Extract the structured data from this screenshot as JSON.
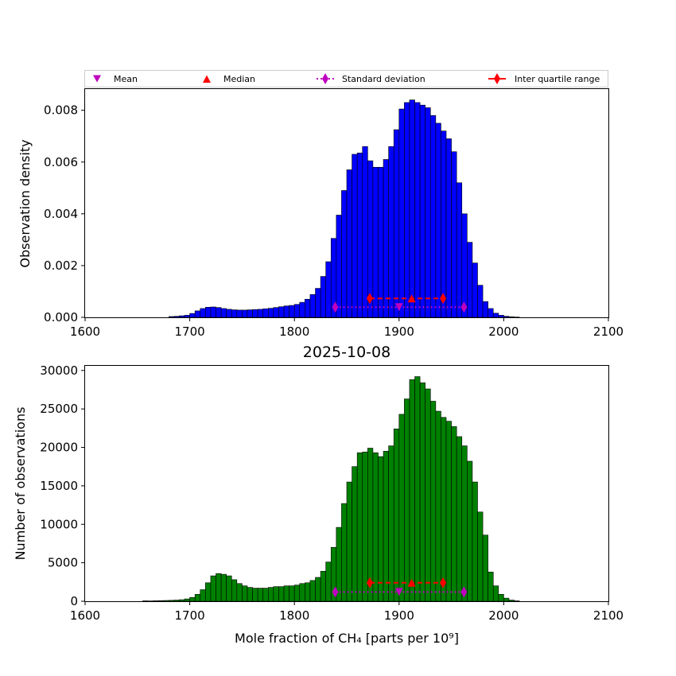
{
  "legend": {
    "items": [
      {
        "label": "Mean",
        "marker": "triangle-down",
        "color": "#bf00bf"
      },
      {
        "label": "Median",
        "marker": "triangle-up",
        "color": "#ff0000"
      },
      {
        "label": "Standard deviation",
        "marker": "diamond-dotted-line",
        "color": "#bf00bf"
      },
      {
        "label": "Inter quartile range",
        "marker": "diamond-solid-line",
        "color": "#ff0000"
      }
    ]
  },
  "bottom_title": "2025-10-08",
  "chart_data": [
    {
      "type": "bar",
      "title": "",
      "xlabel": "",
      "ylabel": "Observation density",
      "xlim": [
        1600,
        2100
      ],
      "ylim": [
        0,
        0.00882
      ],
      "xticks": [
        1600,
        1700,
        1800,
        1900,
        2000,
        2100
      ],
      "xtick_labels": [
        "1600",
        "1700",
        "1800",
        "1900",
        "2000",
        "2100"
      ],
      "yticks": [
        0,
        0.002,
        0.004,
        0.006,
        0.008
      ],
      "ytick_labels": [
        "0.000",
        "0.002",
        "0.004",
        "0.006",
        "0.008"
      ],
      "bin_start": 1680,
      "bin_width": 5,
      "bar_color": "#0000ff",
      "values": [
        3e-05,
        4e-05,
        6e-05,
        8e-05,
        0.00015,
        0.00025,
        0.00034,
        0.00039,
        0.0004,
        0.00038,
        0.00034,
        0.00031,
        0.00029,
        0.00028,
        0.00028,
        0.00029,
        0.0003,
        0.00031,
        0.00033,
        0.00035,
        0.00038,
        0.00041,
        0.00044,
        0.00046,
        0.0005,
        0.00058,
        0.0007,
        0.00088,
        0.00112,
        0.00158,
        0.00215,
        0.00305,
        0.00395,
        0.0049,
        0.0057,
        0.0063,
        0.00635,
        0.0066,
        0.00605,
        0.0058,
        0.0058,
        0.0061,
        0.0066,
        0.00725,
        0.00805,
        0.0083,
        0.0084,
        0.0083,
        0.0082,
        0.0081,
        0.0078,
        0.0075,
        0.0072,
        0.0069,
        0.0064,
        0.0052,
        0.004,
        0.0029,
        0.0021,
        0.00124,
        0.00061,
        0.00034,
        0.00016,
        8e-05,
        4e-05,
        2e-05,
        1e-05
      ],
      "stats": {
        "mean": 1900,
        "median": 1912,
        "std_range": [
          1839,
          1962
        ],
        "iqr_range": [
          1872,
          1942
        ],
        "std_y": 0.00039,
        "iqr_y": 0.00073
      }
    },
    {
      "type": "bar",
      "title": "2025-10-08",
      "xlabel": "Mole fraction of CH₄ [parts per 10⁹]",
      "ylabel": "Number of observations",
      "xlim": [
        1600,
        2100
      ],
      "ylim": [
        0,
        30600
      ],
      "xticks": [
        1600,
        1700,
        1800,
        1900,
        2000,
        2100
      ],
      "xtick_labels": [
        "1600",
        "1700",
        "1800",
        "1900",
        "2000",
        "2100"
      ],
      "yticks": [
        0,
        5000,
        10000,
        15000,
        20000,
        25000,
        30000
      ],
      "ytick_labels": [
        "0",
        "5000",
        "10000",
        "15000",
        "20000",
        "25000",
        "30000"
      ],
      "bin_start": 1655,
      "bin_width": 5,
      "bar_color": "#008000",
      "values": [
        50,
        40,
        60,
        80,
        100,
        120,
        150,
        200,
        300,
        500,
        900,
        1500,
        2400,
        3300,
        3600,
        3500,
        3300,
        2800,
        2300,
        2000,
        1800,
        1700,
        1700,
        1700,
        1800,
        1900,
        1900,
        2000,
        2000,
        2100,
        2300,
        2400,
        2700,
        3100,
        3900,
        5100,
        7000,
        9600,
        12700,
        15500,
        17500,
        19300,
        19400,
        19900,
        19300,
        18800,
        19500,
        20200,
        22400,
        24300,
        26300,
        28800,
        29200,
        28400,
        27600,
        26000,
        24700,
        23900,
        23400,
        22700,
        21400,
        20200,
        18200,
        15500,
        11600,
        8600,
        3800,
        2000,
        900,
        400,
        150,
        50
      ],
      "stats": {
        "mean": 1900,
        "median": 1912,
        "std_range": [
          1839,
          1962
        ],
        "iqr_range": [
          1872,
          1942
        ],
        "std_y": 1200,
        "iqr_y": 2400
      }
    }
  ]
}
